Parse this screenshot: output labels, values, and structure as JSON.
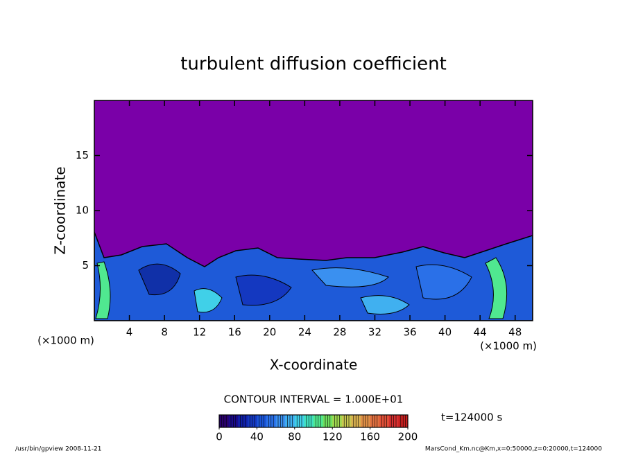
{
  "chart_data": {
    "type": "contour",
    "title": "turbulent diffusion coefficient",
    "x_label": "X-coordinate",
    "y_label": "Z-coordinate",
    "x_unit": "(×1000 m)",
    "y_unit": "(×1000 m)",
    "xlim": [
      0,
      50
    ],
    "xticks": [
      4,
      8,
      12,
      16,
      20,
      24,
      28,
      32,
      36,
      40,
      44,
      48
    ],
    "ylim": [
      0,
      20
    ],
    "yticks": [
      5,
      10,
      15
    ],
    "contour_interval": "CONTOUR INTERVAL = 1.000E+01",
    "time_label": "t=124000 s",
    "footer_left": "/usr/bin/gpview  2008-11-21",
    "footer_right": "MarsCond_Km.nc@Km,x=0:50000,z=0:20000,t=124000",
    "colorbar": {
      "lim": [
        0,
        200
      ],
      "ticks": [
        0,
        40,
        80,
        120,
        160,
        200
      ],
      "colors": [
        "#2a006e",
        "#1a0a8c",
        "#1020a8",
        "#1438c0",
        "#1a55d8",
        "#2a70e8",
        "#3a90f0",
        "#40b0f0",
        "#40d0e8",
        "#40e0c0",
        "#50e890",
        "#70e060",
        "#a0d850",
        "#c8c850",
        "#d8b050",
        "#e09048",
        "#e07040",
        "#e05038",
        "#d83030",
        "#c82020"
      ]
    }
  }
}
